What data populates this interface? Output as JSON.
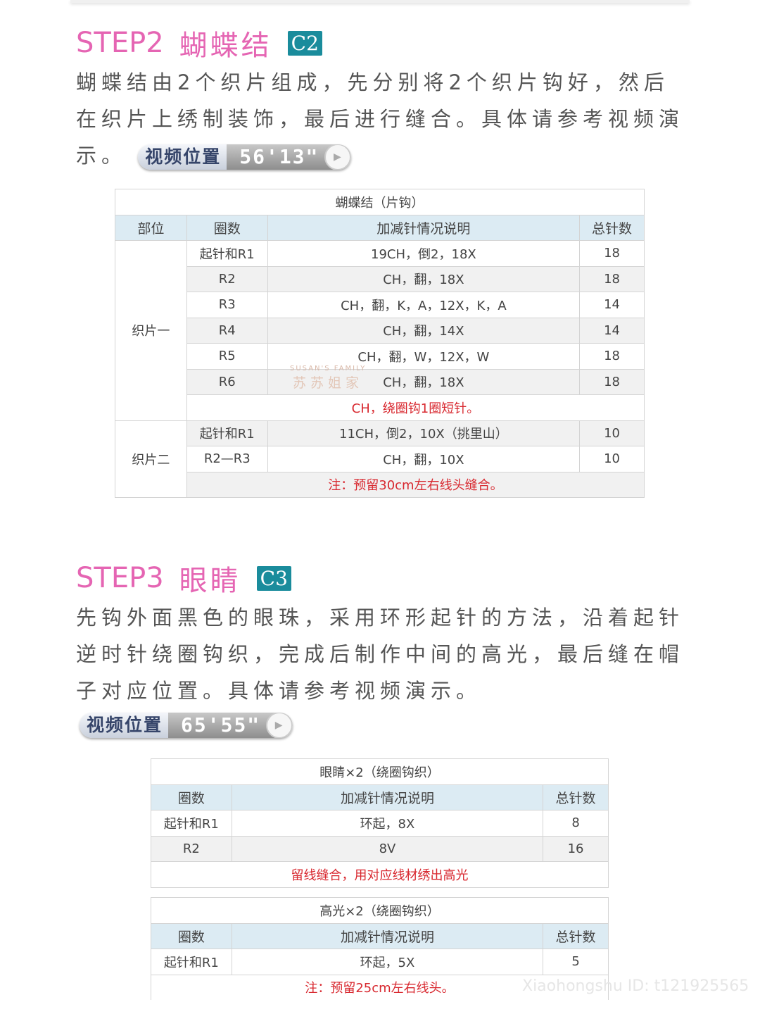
{
  "step2": {
    "title": "STEP2",
    "name": "蝴蝶结",
    "badge": "C2",
    "text": "蝴蝶结由2个织片组成，先分别将2个织片钩好，然后在织片上绣制装饰，最后进行缝合。具体请参考视频演示。",
    "video_label": "视频位置",
    "video_time": "56'13\"",
    "table": {
      "title": "蝴蝶结（片钩）",
      "headers": [
        "部位",
        "圈数",
        "加减针情况说明",
        "总针数"
      ],
      "groups": [
        {
          "part": "织片一",
          "rows": [
            [
              "起针和R1",
              "19CH，倒2，18X",
              "18"
            ],
            [
              "R2",
              "CH，翻，18X",
              "18"
            ],
            [
              "R3",
              "CH，翻，K，A，12X，K，A",
              "14"
            ],
            [
              "R4",
              "CH，翻，14X",
              "14"
            ],
            [
              "R5",
              "CH，翻，W，12X，W",
              "18"
            ],
            [
              "R6",
              "CH，翻，18X",
              "18"
            ]
          ],
          "note": "CH，绕圈钩1圈短针。"
        },
        {
          "part": "织片二",
          "rows": [
            [
              "起针和R1",
              "11CH，倒2，10X（挑里山）",
              "10"
            ],
            [
              "R2—R3",
              "CH，翻，10X",
              "10"
            ]
          ],
          "note": "注：预留30cm左右线头缝合。"
        }
      ]
    }
  },
  "step3": {
    "title": "STEP3",
    "name": "眼睛",
    "badge": "C3",
    "text": "先钩外面黑色的眼珠，采用环形起针的方法，沿着起针逆时针绕圈钩织，完成后制作中间的高光，最后缝在帽子对应位置。具体请参考视频演示。",
    "video_label": "视频位置",
    "video_time": "65'55\"",
    "table1": {
      "title": "眼睛×2（绕圈钩织）",
      "headers": [
        "圈数",
        "加减针情况说明",
        "总针数"
      ],
      "rows": [
        [
          "起针和R1",
          "环起，8X",
          "8"
        ],
        [
          "R2",
          "8V",
          "16"
        ]
      ],
      "note": "留线缝合，用对应线材绣出高光"
    },
    "table2": {
      "title": "高光×2（绕圈钩织）",
      "headers": [
        "圈数",
        "加减针情况说明",
        "总针数"
      ],
      "rows": [
        [
          "起针和R1",
          "环起，5X",
          "5"
        ]
      ],
      "note": "注：预留25cm左右线头。"
    }
  },
  "watermark": {
    "brand_en": "SUSAN'S FAMILY",
    "brand_zh": "苏苏姐家",
    "id": "Xiaohongshu ID: t121925565"
  }
}
